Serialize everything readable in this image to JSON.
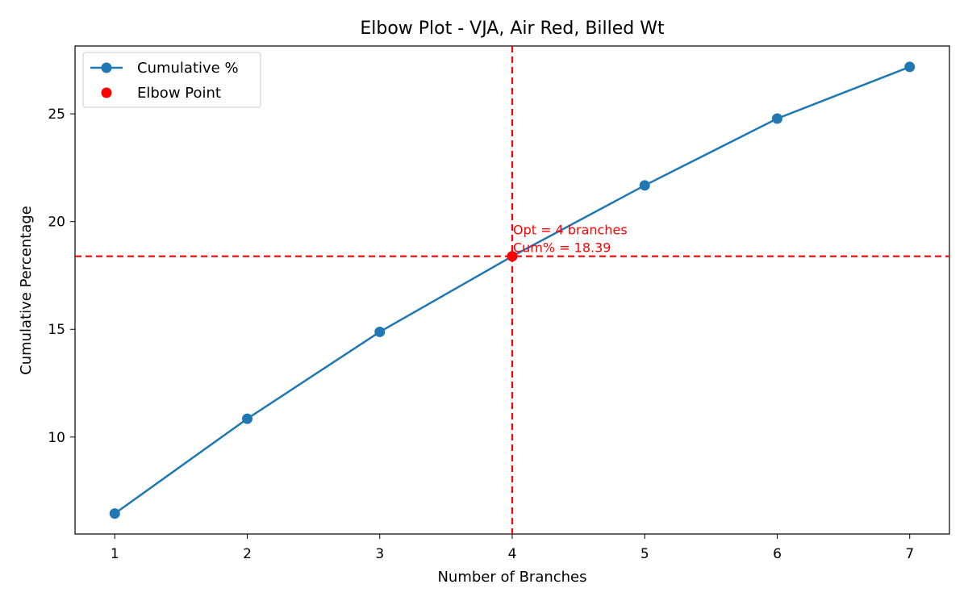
{
  "chart_data": {
    "type": "line",
    "title": "Elbow Plot - VJA, Air Red, Billed Wt",
    "xlabel": "Number of Branches",
    "ylabel": "Cumulative Percentage",
    "x": [
      1,
      2,
      3,
      4,
      5,
      6,
      7
    ],
    "series": [
      {
        "name": "Cumulative %",
        "values": [
          6.45,
          10.85,
          14.88,
          18.39,
          21.68,
          24.78,
          27.18
        ],
        "color": "#1f77b4"
      }
    ],
    "elbow": {
      "name": "Elbow Point",
      "x": 4,
      "y": 18.39,
      "color": "#ff0000"
    },
    "annotation": {
      "line1": "Opt = 4 branches",
      "line2": "Cum% = 18.39",
      "color": "#ff0000"
    },
    "xlim": [
      0.7,
      7.3
    ],
    "ylim": [
      5.5,
      28.15
    ],
    "xticks": [
      1,
      2,
      3,
      4,
      5,
      6,
      7
    ],
    "yticks": [
      10,
      15,
      20,
      25
    ],
    "grid": false,
    "legend_position": "top-left"
  }
}
